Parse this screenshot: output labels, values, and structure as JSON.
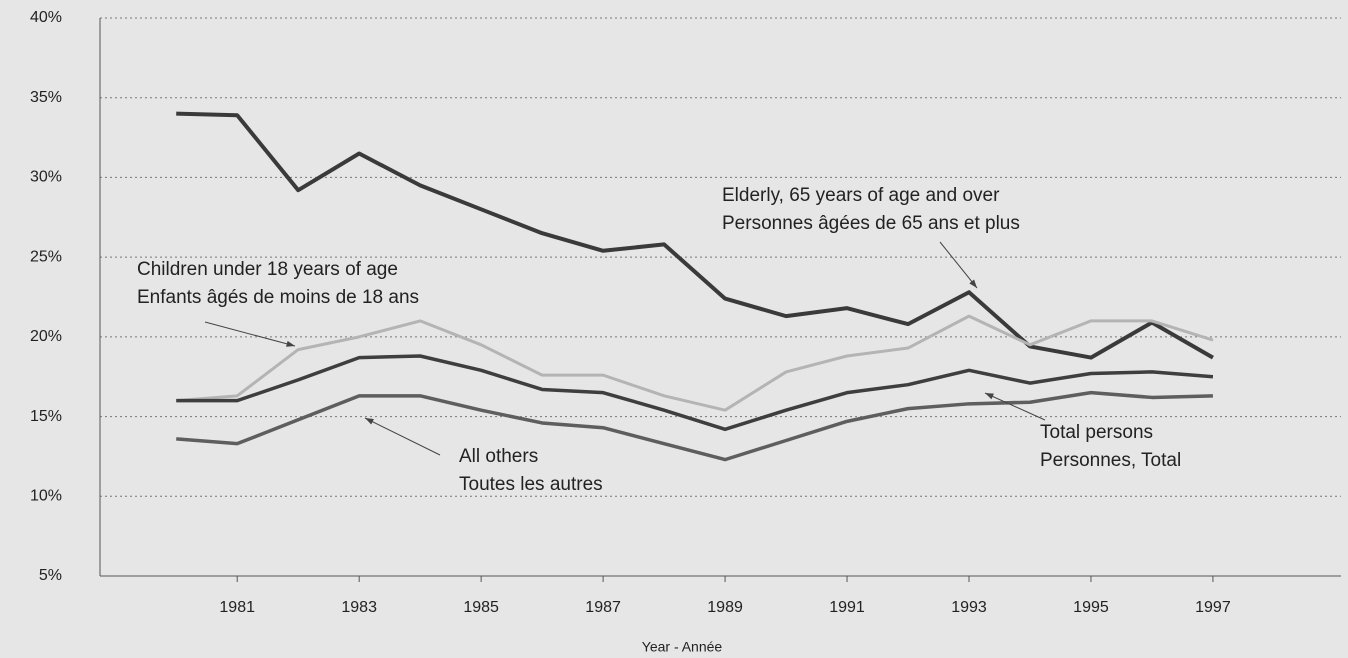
{
  "chart_data": {
    "type": "line",
    "x_label": "Year - Année",
    "x": [
      1980,
      1981,
      1982,
      1983,
      1984,
      1985,
      1986,
      1987,
      1988,
      1989,
      1990,
      1991,
      1992,
      1993,
      1994,
      1995,
      1996,
      1997
    ],
    "xlim": [
      1978.75,
      1999.1
    ],
    "xticks": [
      1981,
      1983,
      1985,
      1987,
      1989,
      1991,
      1993,
      1995,
      1997
    ],
    "ylim": [
      5,
      40
    ],
    "yticks": [
      {
        "value": 5,
        "label": "5%"
      },
      {
        "value": 10,
        "label": "10%"
      },
      {
        "value": 15,
        "label": "15%"
      },
      {
        "value": 20,
        "label": "20%"
      },
      {
        "value": 25,
        "label": "25%"
      },
      {
        "value": 30,
        "label": "30%"
      },
      {
        "value": 35,
        "label": "35%"
      },
      {
        "value": 40,
        "label": "40%"
      }
    ],
    "grid": true,
    "series": [
      {
        "name": [
          "Elderly, 65 years of age and over",
          "Personnes âgées de 65 ans et plus"
        ],
        "color": "#3a3a3a",
        "values": [
          34.0,
          33.9,
          29.2,
          31.5,
          29.5,
          28.0,
          26.5,
          25.4,
          25.8,
          22.4,
          21.3,
          21.8,
          20.8,
          22.8,
          19.4,
          18.7,
          20.9,
          18.7
        ]
      },
      {
        "name": [
          "Children under 18 years of age",
          "Enfants âgés de moins de 18 ans"
        ],
        "color": "#b4b4b4",
        "values": [
          16.0,
          16.3,
          19.2,
          20.0,
          21.0,
          19.5,
          17.6,
          17.6,
          16.3,
          15.4,
          17.8,
          18.8,
          19.3,
          21.3,
          19.5,
          21.0,
          21.0,
          19.8
        ]
      },
      {
        "name": [
          "Total persons",
          "Personnes, Total"
        ],
        "color": "#3e3e3e",
        "values": [
          16.0,
          16.0,
          17.3,
          18.7,
          18.8,
          17.9,
          16.7,
          16.5,
          15.4,
          14.2,
          15.4,
          16.5,
          17.0,
          17.9,
          17.1,
          17.7,
          17.8,
          17.5
        ]
      },
      {
        "name": [
          "All others",
          "Toutes les autres"
        ],
        "color": "#5e5e5e",
        "values": [
          13.6,
          13.3,
          14.8,
          16.3,
          16.3,
          15.4,
          14.6,
          14.3,
          13.3,
          12.3,
          13.5,
          14.7,
          15.5,
          15.8,
          15.9,
          16.5,
          16.2,
          16.3
        ]
      }
    ]
  }
}
